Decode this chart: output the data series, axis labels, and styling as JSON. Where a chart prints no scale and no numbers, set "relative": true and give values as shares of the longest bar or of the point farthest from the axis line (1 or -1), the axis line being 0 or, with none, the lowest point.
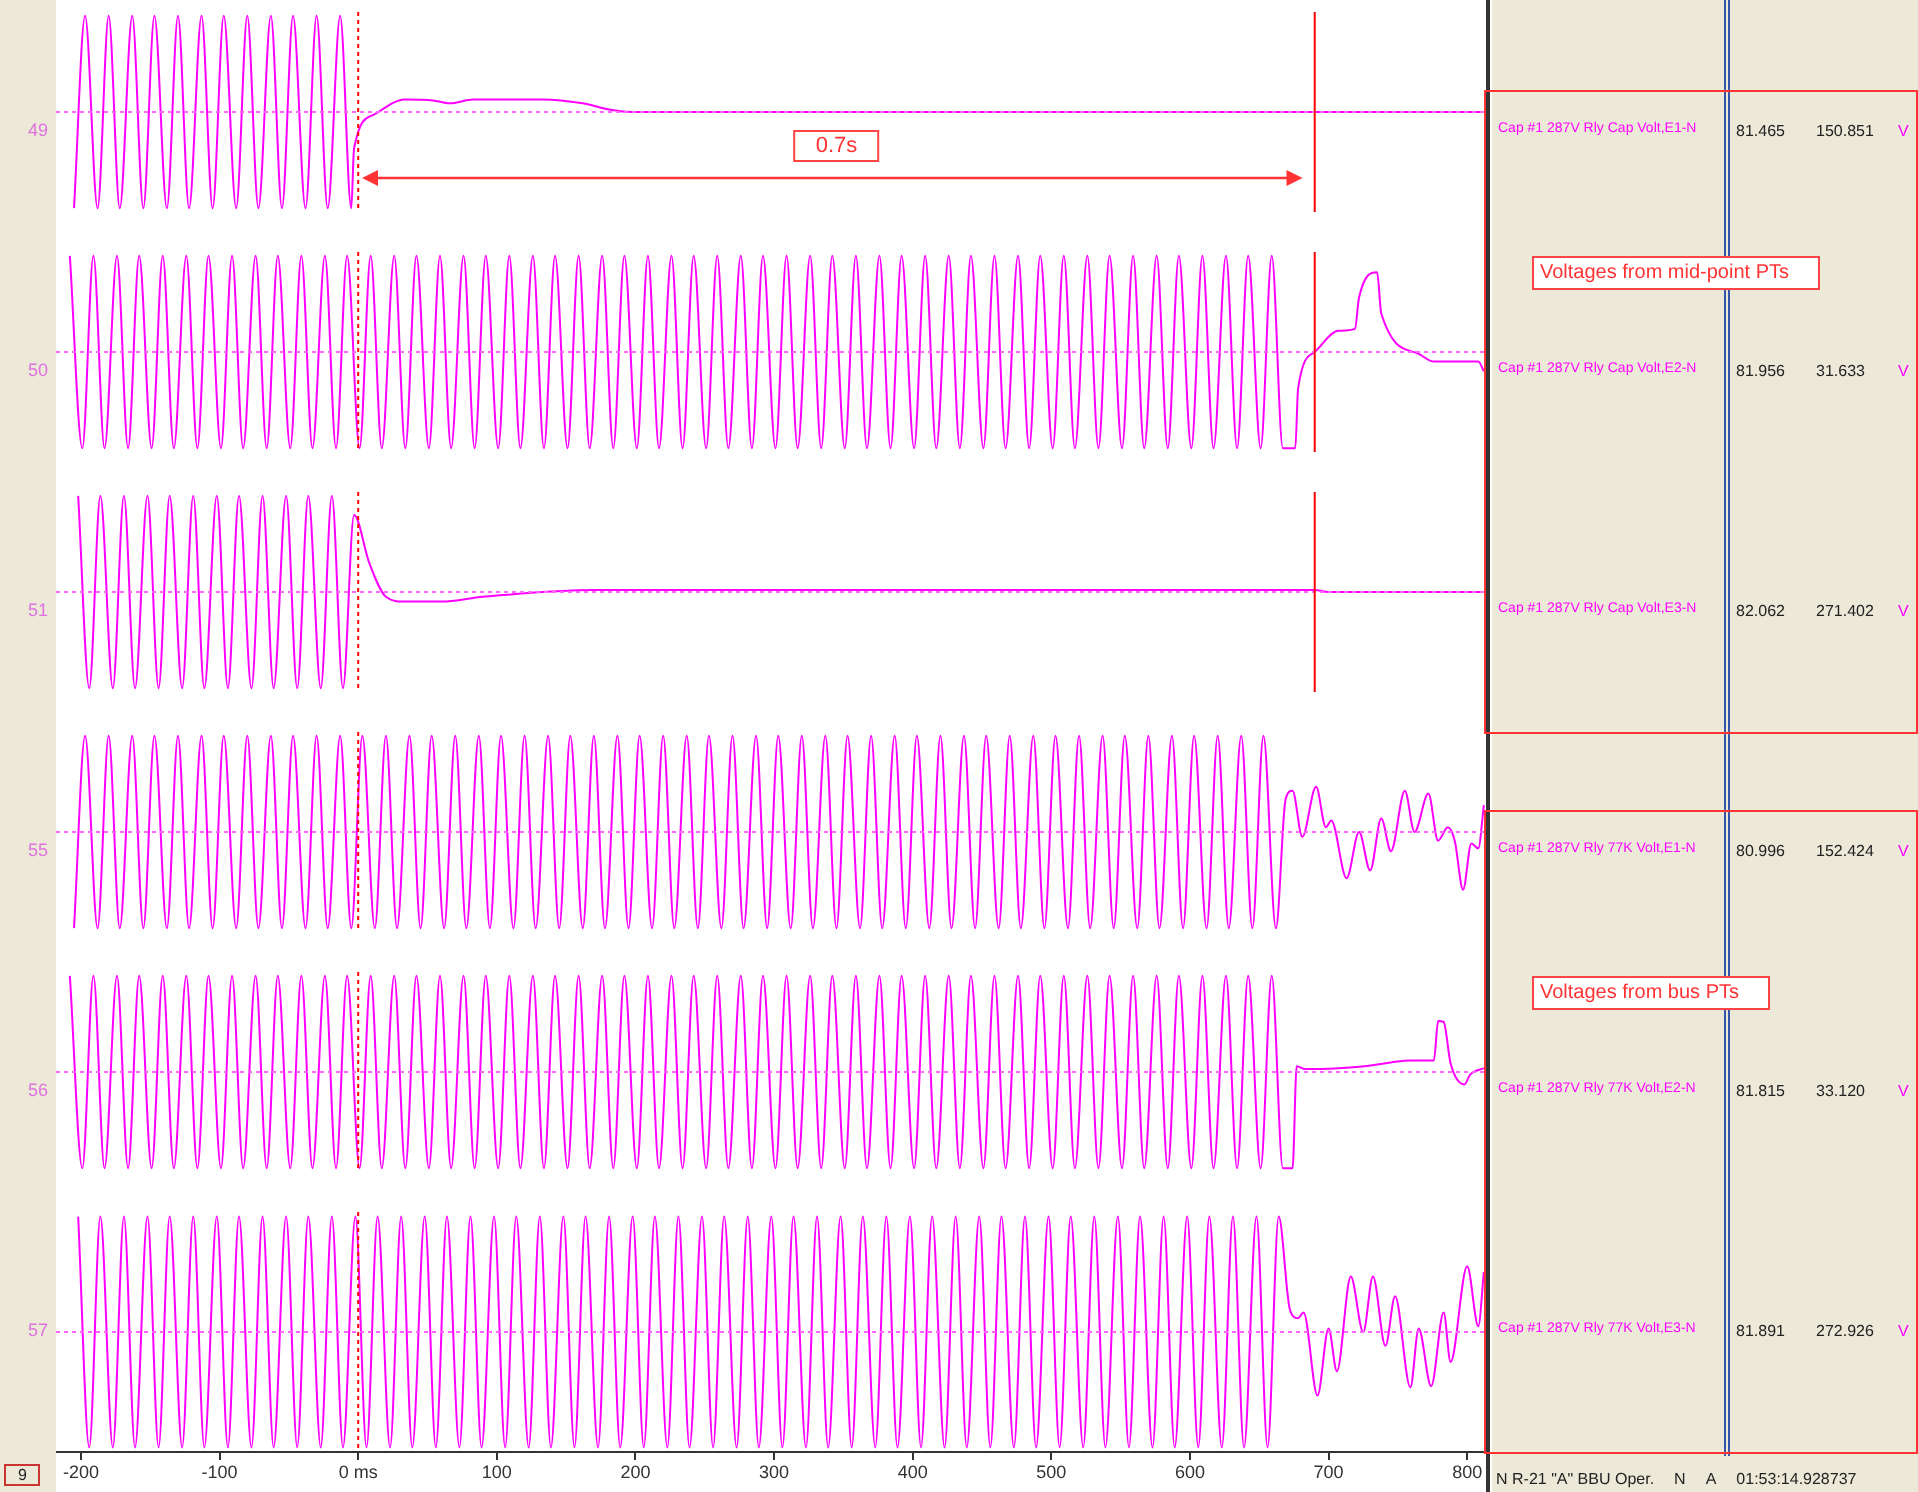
{
  "chart_data": [
    {
      "type": "line",
      "ylabel": "49",
      "relative": true,
      "tick_labels": false,
      "xlim": [
        -218,
        815
      ],
      "x": [
        -205,
        -197,
        -188,
        -180,
        -172,
        -163,
        -155,
        -147,
        -138,
        -130,
        -122,
        -113,
        -105,
        -97,
        -88,
        -80,
        -72,
        -63,
        -55,
        -47,
        -38,
        -30,
        -22,
        -13,
        -5,
        -3,
        11,
        26,
        33,
        54,
        66,
        83,
        133,
        162,
        183,
        197,
        810
      ],
      "series": [
        {
          "name": "Cap #1 287V Rly Cap Volt,E1-N",
          "color": "#ff00ff",
          "values": [
            -1,
            1,
            -1,
            1,
            -1,
            1,
            -1,
            1,
            -1,
            1,
            -1,
            1,
            -1,
            1,
            -1,
            1,
            -1,
            1,
            -1,
            1,
            -1,
            1,
            -1,
            1,
            -1,
            -0.38,
            -0.03,
            0.1,
            0.13,
            0.12,
            0.09,
            0.13,
            0.13,
            0.09,
            0.02,
            0,
            0
          ]
        }
      ],
      "ref_lines": [
        {
          "axis": "y",
          "value": 0,
          "color": "#ff66ff",
          "line_style": "dotted"
        },
        {
          "axis": "x",
          "value": 0,
          "color": "#ff0000",
          "line_style": "dotted"
        },
        {
          "axis": "x",
          "value": 690,
          "color": "#ff0000"
        }
      ],
      "annotations": [
        "81.465",
        "150.851",
        "V",
        "0.7s"
      ]
    },
    {
      "type": "line",
      "ylabel": "50",
      "relative": true,
      "tick_labels": false,
      "xlim": [
        -218,
        815
      ],
      "x": [
        -208,
        -199,
        -191,
        -183,
        -174,
        -166,
        -158,
        -149,
        -141,
        -133,
        -124,
        -116,
        -108,
        -99,
        -91,
        -83,
        -74,
        -66,
        -58,
        -49,
        -41,
        -33,
        -24,
        -16,
        -8,
        1,
        9,
        17,
        26,
        34,
        42,
        51,
        59,
        67,
        76,
        84,
        92,
        101,
        109,
        117,
        126,
        134,
        142,
        151,
        159,
        167,
        176,
        184,
        192,
        201,
        209,
        217,
        226,
        234,
        242,
        251,
        259,
        267,
        276,
        284,
        292,
        301,
        309,
        317,
        326,
        334,
        342,
        351,
        359,
        367,
        376,
        384,
        392,
        401,
        409,
        417,
        426,
        434,
        442,
        451,
        459,
        467,
        476,
        484,
        492,
        501,
        509,
        517,
        526,
        534,
        542,
        551,
        559,
        567,
        576,
        584,
        592,
        601,
        609,
        617,
        626,
        634,
        642,
        651,
        659,
        667,
        676,
        678,
        690,
        707,
        719,
        722,
        735,
        738,
        765,
        776,
        808,
        812
      ],
      "series": [
        {
          "name": "Cap #1 287V Rly Cap Volt,E2-N",
          "color": "#ff00ff",
          "values": [
            1,
            -1,
            1,
            -1,
            1,
            -1,
            1,
            -1,
            1,
            -1,
            1,
            -1,
            1,
            -1,
            1,
            -1,
            1,
            -1,
            1,
            -1,
            1,
            -1,
            1,
            -1,
            1,
            -1,
            1,
            -1,
            1,
            -1,
            1,
            -1,
            1,
            -1,
            1,
            -1,
            1,
            -1,
            1,
            -1,
            1,
            -1,
            1,
            -1,
            1,
            -1,
            1,
            -1,
            1,
            -1,
            1,
            -1,
            1,
            -1,
            1,
            -1,
            1,
            -1,
            1,
            -1,
            1,
            -1,
            1,
            -1,
            1,
            -1,
            1,
            -1,
            1,
            -1,
            1,
            -1,
            1,
            -1,
            1,
            -1,
            1,
            -1,
            1,
            -1,
            1,
            -1,
            1,
            -1,
            1,
            -1,
            1,
            -1,
            1,
            -1,
            1,
            -1,
            1,
            -1,
            1,
            -1,
            1,
            -1,
            1,
            -1,
            1,
            -1,
            1,
            -1,
            1,
            -1,
            -1,
            -0.38,
            0,
            0.22,
            0.24,
            0.57,
            0.83,
            0.4,
            -0.02,
            -0.1,
            -0.1,
            -0.2
          ]
        }
      ],
      "ref_lines": [
        {
          "axis": "y",
          "value": 0,
          "color": "#ff66ff",
          "line_style": "dotted"
        },
        {
          "axis": "x",
          "value": 0,
          "color": "#ff0000",
          "line_style": "dotted"
        },
        {
          "axis": "x",
          "value": 690,
          "color": "#ff0000"
        }
      ],
      "annotations": [
        "81.956",
        "31.633",
        "V",
        "Voltages from mid-point PTs"
      ]
    },
    {
      "type": "line",
      "ylabel": "51",
      "relative": true,
      "tick_labels": false,
      "xlim": [
        -218,
        815
      ],
      "x": [
        -202,
        -194,
        -186,
        -177,
        -169,
        -161,
        -152,
        -144,
        -136,
        -127,
        -119,
        -111,
        -102,
        -94,
        -86,
        -77,
        -69,
        -61,
        -52,
        -44,
        -36,
        -27,
        -19,
        -11,
        -3,
        8,
        20,
        33,
        60,
        90,
        170,
        690,
        700,
        810
      ],
      "series": [
        {
          "name": "Cap #1 287V Rly Cap Volt,E3-N",
          "color": "#ff00ff",
          "values": [
            1,
            -1,
            1,
            -1,
            1,
            -1,
            1,
            -1,
            1,
            -1,
            1,
            -1,
            1,
            -1,
            1,
            -1,
            1,
            -1,
            1,
            -1,
            1,
            -1,
            1,
            -1,
            0.8,
            0.3,
            -0.05,
            -0.1,
            -0.1,
            -0.05,
            0.02,
            0.02,
            0,
            0
          ]
        }
      ],
      "ref_lines": [
        {
          "axis": "y",
          "value": 0,
          "color": "#ff66ff",
          "line_style": "dotted"
        },
        {
          "axis": "x",
          "value": 0,
          "color": "#ff0000",
          "line_style": "dotted"
        },
        {
          "axis": "x",
          "value": 690,
          "color": "#ff0000"
        }
      ],
      "annotations": [
        "82.062",
        "271.402",
        "V"
      ]
    },
    {
      "type": "line",
      "ylabel": "55",
      "relative": true,
      "tick_labels": false,
      "xlim": [
        -218,
        815
      ],
      "x": [
        -205,
        -197,
        -188,
        -180,
        -172,
        -163,
        -155,
        -147,
        -138,
        -130,
        -122,
        -113,
        -105,
        -97,
        -88,
        -80,
        -72,
        -63,
        -55,
        -47,
        -38,
        -30,
        -22,
        -13,
        -5,
        3,
        12,
        20,
        28,
        37,
        45,
        53,
        62,
        70,
        78,
        87,
        95,
        103,
        112,
        120,
        128,
        137,
        145,
        153,
        162,
        170,
        178,
        187,
        195,
        203,
        212,
        220,
        228,
        237,
        245,
        253,
        262,
        270,
        278,
        287,
        295,
        303,
        312,
        320,
        328,
        337,
        345,
        353,
        362,
        370,
        378,
        387,
        395,
        403,
        412,
        420,
        428,
        437,
        445,
        453,
        462,
        470,
        478,
        487,
        495,
        503,
        512,
        520,
        528,
        537,
        545,
        553,
        562,
        570,
        578,
        587,
        595,
        603,
        612,
        620,
        628,
        637,
        645,
        653,
        662,
        669,
        674,
        681,
        691,
        698,
        702,
        713,
        722,
        730,
        738,
        745,
        755,
        762,
        772,
        779,
        786,
        791,
        797,
        803,
        808,
        812
      ],
      "series": [
        {
          "name": "Cap #1 287V Rly 77K Volt,E1-N",
          "color": "#ff00ff",
          "values": [
            -1,
            1,
            -1,
            1,
            -1,
            1,
            -1,
            1,
            -1,
            1,
            -1,
            1,
            -1,
            1,
            -1,
            1,
            -1,
            1,
            -1,
            1,
            -1,
            1,
            -1,
            1,
            -1,
            1,
            -1,
            1,
            -1,
            1,
            -1,
            1,
            -1,
            1,
            -1,
            1,
            -1,
            1,
            -1,
            1,
            -1,
            1,
            -1,
            1,
            -1,
            1,
            -1,
            1,
            -1,
            1,
            -1,
            1,
            -1,
            1,
            -1,
            1,
            -1,
            1,
            -1,
            1,
            -1,
            1,
            -1,
            1,
            -1,
            1,
            -1,
            1,
            -1,
            1,
            -1,
            1,
            -1,
            1,
            -1,
            1,
            -1,
            1,
            -1,
            1,
            -1,
            1,
            -1,
            1,
            -1,
            1,
            -1,
            1,
            -1,
            1,
            -1,
            1,
            -1,
            1,
            -1,
            1,
            -1,
            1,
            -1,
            1,
            -1,
            1,
            -1,
            1,
            -1,
            0.34,
            0.43,
            -0.05,
            0.47,
            0.05,
            0.12,
            -0.48,
            0,
            -0.4,
            0.14,
            -0.2,
            0.43,
            0,
            0.4,
            -0.09,
            0.05,
            -0.09,
            -0.6,
            -0.12,
            -0.17,
            0.28
          ]
        }
      ],
      "ref_lines": [
        {
          "axis": "y",
          "value": 0,
          "color": "#ff66ff",
          "line_style": "dotted"
        },
        {
          "axis": "x",
          "value": 0,
          "color": "#ff0000",
          "line_style": "dotted"
        }
      ],
      "annotations": [
        "80.996",
        "152.424",
        "V"
      ]
    },
    {
      "type": "line",
      "ylabel": "56",
      "relative": true,
      "tick_labels": false,
      "xlim": [
        -218,
        815
      ],
      "x": [
        -208,
        -199,
        -191,
        -183,
        -174,
        -166,
        -158,
        -149,
        -141,
        -133,
        -124,
        -116,
        -108,
        -99,
        -91,
        -83,
        -74,
        -66,
        -58,
        -49,
        -41,
        -33,
        -24,
        -16,
        -8,
        1,
        9,
        17,
        26,
        34,
        42,
        51,
        59,
        67,
        76,
        84,
        92,
        101,
        109,
        117,
        126,
        134,
        142,
        151,
        159,
        167,
        176,
        184,
        192,
        201,
        209,
        217,
        226,
        234,
        242,
        251,
        259,
        267,
        276,
        284,
        292,
        301,
        309,
        317,
        326,
        334,
        342,
        351,
        359,
        367,
        376,
        384,
        392,
        401,
        409,
        417,
        426,
        434,
        442,
        451,
        459,
        467,
        476,
        484,
        492,
        501,
        509,
        517,
        526,
        534,
        542,
        551,
        559,
        567,
        576,
        584,
        592,
        601,
        609,
        617,
        626,
        634,
        642,
        651,
        659,
        667,
        674,
        677,
        683,
        707,
        726,
        745,
        759,
        776,
        779,
        783,
        788,
        798,
        802,
        812
      ],
      "series": [
        {
          "name": "Cap #1 287V Rly 77K Volt,E2-N",
          "color": "#ff00ff",
          "values": [
            1,
            -1,
            1,
            -1,
            1,
            -1,
            1,
            -1,
            1,
            -1,
            1,
            -1,
            1,
            -1,
            1,
            -1,
            1,
            -1,
            1,
            -1,
            1,
            -1,
            1,
            -1,
            1,
            -1,
            1,
            -1,
            1,
            -1,
            1,
            -1,
            1,
            -1,
            1,
            -1,
            1,
            -1,
            1,
            -1,
            1,
            -1,
            1,
            -1,
            1,
            -1,
            1,
            -1,
            1,
            -1,
            1,
            -1,
            1,
            -1,
            1,
            -1,
            1,
            -1,
            1,
            -1,
            1,
            -1,
            1,
            -1,
            1,
            -1,
            1,
            -1,
            1,
            -1,
            1,
            -1,
            1,
            -1,
            1,
            -1,
            1,
            -1,
            1,
            -1,
            1,
            -1,
            1,
            -1,
            1,
            -1,
            1,
            -1,
            1,
            -1,
            1,
            -1,
            1,
            -1,
            1,
            -1,
            1,
            -1,
            1,
            -1,
            1,
            -1,
            1,
            -1,
            1,
            -1,
            -1,
            0.06,
            0.03,
            0.04,
            0.06,
            0.1,
            0.12,
            0.12,
            0.53,
            0.52,
            0.09,
            -0.13,
            -0.03,
            0.04
          ]
        }
      ],
      "ref_lines": [
        {
          "axis": "y",
          "value": 0,
          "color": "#ff66ff",
          "line_style": "dotted"
        },
        {
          "axis": "x",
          "value": 0,
          "color": "#ff0000",
          "line_style": "dotted"
        }
      ],
      "annotations": [
        "81.815",
        "33.120",
        "V",
        "Voltages from bus PTs"
      ]
    },
    {
      "type": "line",
      "ylabel": "57",
      "relative": true,
      "tick_labels": "x",
      "xlim": [
        -218,
        815
      ],
      "xticks": [
        -200,
        -100,
        {
          "value": 0,
          "label": "0 ms"
        },
        100,
        200,
        300,
        400,
        500,
        600,
        700,
        800
      ],
      "x": [
        -202,
        -194,
        -186,
        -177,
        -169,
        -161,
        -152,
        -144,
        -136,
        -127,
        -119,
        -111,
        -102,
        -94,
        -86,
        -77,
        -69,
        -61,
        -52,
        -44,
        -36,
        -27,
        -19,
        -11,
        -2,
        6,
        14,
        23,
        31,
        39,
        48,
        56,
        64,
        73,
        81,
        89,
        98,
        106,
        114,
        123,
        131,
        139,
        148,
        156,
        164,
        173,
        181,
        189,
        198,
        206,
        214,
        223,
        231,
        239,
        248,
        256,
        264,
        273,
        281,
        289,
        298,
        306,
        314,
        323,
        331,
        339,
        348,
        356,
        364,
        373,
        381,
        389,
        398,
        406,
        414,
        423,
        431,
        439,
        448,
        456,
        464,
        473,
        481,
        489,
        498,
        506,
        514,
        523,
        531,
        539,
        548,
        556,
        564,
        573,
        581,
        589,
        598,
        606,
        614,
        623,
        631,
        639,
        648,
        656,
        664,
        672,
        678,
        682,
        692,
        700,
        706,
        716,
        725,
        732,
        741,
        748,
        759,
        765,
        774,
        783,
        788,
        800,
        808,
        812
      ],
      "series": [
        {
          "name": "Cap #1 287V Rly 77K Volt,E3-N",
          "color": "#ff00ff",
          "values": [
            1,
            -1,
            1,
            -1,
            1,
            -1,
            1,
            -1,
            1,
            -1,
            1,
            -1,
            1,
            -1,
            1,
            -1,
            1,
            -1,
            1,
            -1,
            1,
            -1,
            1,
            -1,
            1,
            -1,
            1,
            -1,
            1,
            -1,
            1,
            -1,
            1,
            -1,
            1,
            -1,
            1,
            -1,
            1,
            -1,
            1,
            -1,
            1,
            -1,
            1,
            -1,
            1,
            -1,
            1,
            -1,
            1,
            -1,
            1,
            -1,
            1,
            -1,
            1,
            -1,
            1,
            -1,
            1,
            -1,
            1,
            -1,
            1,
            -1,
            1,
            -1,
            1,
            -1,
            1,
            -1,
            1,
            -1,
            1,
            -1,
            1,
            -1,
            1,
            -1,
            1,
            -1,
            1,
            -1,
            1,
            -1,
            1,
            -1,
            1,
            -1,
            1,
            -1,
            1,
            -1,
            1,
            -1,
            1,
            -1,
            1,
            -1,
            1,
            -1,
            1,
            -1,
            1,
            0.2,
            0.12,
            0.17,
            -0.55,
            0.03,
            -0.34,
            0.48,
            0,
            0.48,
            -0.12,
            0.31,
            -0.48,
            0.03,
            -0.47,
            0.17,
            -0.26,
            0.57,
            0.05,
            0.52
          ]
        }
      ],
      "ref_lines": [
        {
          "axis": "y",
          "value": 0,
          "color": "#ff66ff",
          "line_style": "dotted"
        },
        {
          "axis": "x",
          "value": 0,
          "color": "#ff0000",
          "line_style": "dotted"
        }
      ],
      "annotations": [
        "81.891",
        "272.926",
        "V",
        "9",
        "N R-21 \"A\" BBU Oper.",
        "N",
        "A",
        "01:53:14.928737"
      ]
    }
  ]
}
